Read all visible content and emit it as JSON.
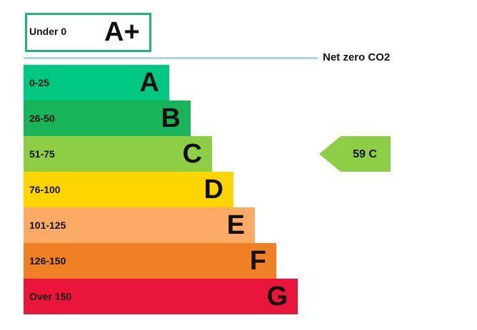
{
  "top": {
    "range": "Under 0",
    "rating": "A+"
  },
  "net_zero": "Net zero CO2",
  "bands": [
    {
      "range": "0-25",
      "rating": "A"
    },
    {
      "range": "26-50",
      "rating": "B"
    },
    {
      "range": "51-75",
      "rating": "C"
    },
    {
      "range": "76-100",
      "rating": "D"
    },
    {
      "range": "101-125",
      "rating": "E"
    },
    {
      "range": "126-150",
      "rating": "F"
    },
    {
      "range": "Over 150",
      "rating": "G"
    }
  ],
  "current": "59 C"
}
